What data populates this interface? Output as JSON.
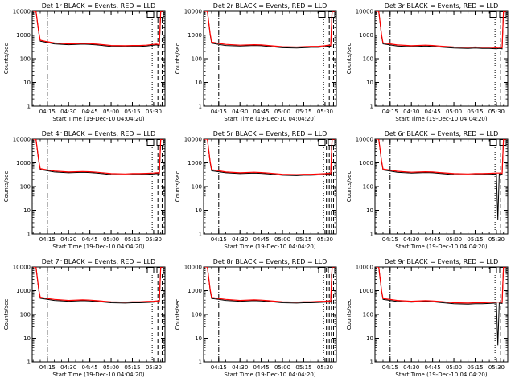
{
  "figure": {
    "background": "#ffffff",
    "axis_color": "#000000",
    "events_color": "#000000",
    "lld_color": "#ff0000"
  },
  "chart_data": [
    {
      "type": "line",
      "title": "Det 1r BLACK = Events, RED = LLD",
      "xlabel": "Start Time (19-Dec-10 04:04:20)",
      "ylabel": "Counts/sec",
      "yscale": "log",
      "ylim": [
        1,
        10000
      ],
      "xlim": [
        "04:04:20",
        "05:38:00"
      ],
      "xticks": [
        "04:15",
        "04:30",
        "04:45",
        "05:00",
        "05:15",
        "05:30"
      ],
      "yticks": [
        "1",
        "10",
        "100",
        "1000",
        "10000"
      ],
      "legend_boxes": 2,
      "x": [
        "04:05",
        "04:07",
        "04:09",
        "04:10",
        "04:15",
        "04:20",
        "04:30",
        "04:40",
        "04:45",
        "04:50",
        "05:00",
        "05:10",
        "05:15",
        "05:20",
        "05:25",
        "05:30",
        "05:32",
        "05:34",
        "05:35",
        "05:36",
        "05:37"
      ],
      "series": [
        {
          "name": "BLACK = Events",
          "values": [
            10000,
            10000,
            1200,
            550,
            480,
            420,
            390,
            410,
            400,
            380,
            330,
            320,
            330,
            330,
            340,
            370,
            380,
            360,
            10000,
            10000,
            10000
          ]
        },
        {
          "name": "RED = LLD",
          "values": [
            10000,
            10000,
            1300,
            600,
            520,
            460,
            420,
            440,
            430,
            410,
            360,
            350,
            360,
            360,
            370,
            400,
            410,
            390,
            10000,
            10000,
            10000
          ]
        }
      ],
      "dashdot_lines": [
        "04:15"
      ],
      "dotted_lines": [
        "05:29"
      ],
      "dashed_lines": [
        "05:33",
        "05:36"
      ]
    },
    {
      "type": "line",
      "title": "Det 2r BLACK = Events, RED = LLD",
      "xlabel": "Start Time (19-Dec-10 04:04:20)",
      "ylabel": "Counts/sec",
      "yscale": "log",
      "ylim": [
        1,
        10000
      ],
      "xlim": [
        "04:04:20",
        "05:38:00"
      ],
      "xticks": [
        "04:15",
        "04:30",
        "04:45",
        "05:00",
        "05:15",
        "05:30"
      ],
      "yticks": [
        "1",
        "10",
        "100",
        "1000",
        "10000"
      ],
      "legend_boxes": 2,
      "x": [
        "04:05",
        "04:07",
        "04:09",
        "04:10",
        "04:15",
        "04:20",
        "04:30",
        "04:40",
        "04:45",
        "04:50",
        "05:00",
        "05:10",
        "05:15",
        "05:20",
        "05:25",
        "05:30",
        "05:32",
        "05:34",
        "05:35",
        "05:36",
        "05:37"
      ],
      "series": [
        {
          "name": "BLACK = Events",
          "values": [
            10000,
            10000,
            1000,
            450,
            400,
            360,
            340,
            360,
            350,
            330,
            290,
            280,
            290,
            300,
            300,
            320,
            340,
            330,
            10000,
            10000,
            10000
          ]
        },
        {
          "name": "RED = LLD",
          "values": [
            10000,
            10000,
            1100,
            500,
            440,
            400,
            370,
            390,
            380,
            360,
            320,
            310,
            320,
            330,
            330,
            350,
            370,
            360,
            10000,
            10000,
            10000
          ]
        }
      ],
      "dashdot_lines": [
        "04:15"
      ],
      "dotted_lines": [
        "05:29"
      ],
      "dashed_lines": [
        "05:33",
        "05:36"
      ]
    },
    {
      "type": "line",
      "title": "Det 3r BLACK = Events, RED = LLD",
      "xlabel": "Start Time (19-Dec-10 04:04:20)",
      "ylabel": "Counts/sec",
      "yscale": "log",
      "ylim": [
        1,
        10000
      ],
      "xlim": [
        "04:04:20",
        "05:38:00"
      ],
      "xticks": [
        "04:15",
        "04:30",
        "04:45",
        "05:00",
        "05:15",
        "05:30"
      ],
      "yticks": [
        "1",
        "10",
        "100",
        "1000",
        "10000"
      ],
      "legend_boxes": 2,
      "x": [
        "04:05",
        "04:07",
        "04:09",
        "04:10",
        "04:15",
        "04:20",
        "04:30",
        "04:40",
        "04:45",
        "04:50",
        "05:00",
        "05:10",
        "05:15",
        "05:20",
        "05:25",
        "05:30",
        "05:32",
        "05:34",
        "05:35",
        "05:36",
        "05:37"
      ],
      "series": [
        {
          "name": "BLACK = Events",
          "values": [
            10000,
            10000,
            900,
            420,
            380,
            340,
            320,
            340,
            330,
            310,
            280,
            270,
            280,
            270,
            270,
            260,
            270,
            260,
            10000,
            10000,
            10000
          ]
        },
        {
          "name": "RED = LLD",
          "values": [
            10000,
            10000,
            1000,
            460,
            420,
            380,
            350,
            370,
            360,
            340,
            310,
            300,
            310,
            300,
            300,
            290,
            300,
            290,
            10000,
            10000,
            10000
          ]
        }
      ],
      "dashdot_lines": [
        "04:15"
      ],
      "dotted_lines": [
        "05:29"
      ],
      "dashed_lines": [
        "05:33",
        "05:36"
      ]
    },
    {
      "type": "line",
      "title": "Det 4r BLACK = Events, RED = LLD",
      "xlabel": "Start Time (19-Dec-10 04:04:20)",
      "ylabel": "Counts/sec",
      "yscale": "log",
      "ylim": [
        1,
        10000
      ],
      "xlim": [
        "04:04:20",
        "05:38:00"
      ],
      "xticks": [
        "04:15",
        "04:30",
        "04:45",
        "05:00",
        "05:15",
        "05:30"
      ],
      "yticks": [
        "1",
        "10",
        "100",
        "1000",
        "10000"
      ],
      "legend_boxes": 2,
      "x": [
        "04:05",
        "04:07",
        "04:09",
        "04:10",
        "04:15",
        "04:20",
        "04:30",
        "04:40",
        "04:45",
        "04:50",
        "05:00",
        "05:10",
        "05:15",
        "05:20",
        "05:25",
        "05:30",
        "05:32",
        "05:34",
        "05:35",
        "05:36",
        "05:37"
      ],
      "series": [
        {
          "name": "BLACK = Events",
          "values": [
            10000,
            10000,
            1100,
            520,
            460,
            410,
            380,
            400,
            390,
            370,
            320,
            310,
            320,
            320,
            330,
            340,
            350,
            340,
            10000,
            10000,
            10000
          ]
        },
        {
          "name": "RED = LLD",
          "values": [
            10000,
            10000,
            1200,
            570,
            500,
            450,
            410,
            430,
            420,
            400,
            350,
            340,
            350,
            350,
            360,
            370,
            380,
            370,
            10000,
            10000,
            10000
          ]
        }
      ],
      "dashdot_lines": [
        "04:15"
      ],
      "dotted_lines": [
        "05:29"
      ],
      "dashed_lines": [
        "05:33",
        "05:36"
      ]
    },
    {
      "type": "line",
      "title": "Det 5r BLACK = Events, RED = LLD",
      "xlabel": "Start Time (19-Dec-10 04:04:20)",
      "ylabel": "Counts/sec",
      "yscale": "log",
      "ylim": [
        1,
        10000
      ],
      "xlim": [
        "04:04:20",
        "05:38:00"
      ],
      "xticks": [
        "04:15",
        "04:30",
        "04:45",
        "05:00",
        "05:15",
        "05:30"
      ],
      "yticks": [
        "1",
        "10",
        "100",
        "1000",
        "10000"
      ],
      "legend_boxes": 2,
      "x": [
        "04:05",
        "04:07",
        "04:09",
        "04:10",
        "04:15",
        "04:20",
        "04:30",
        "04:40",
        "04:45",
        "04:50",
        "05:00",
        "05:10",
        "05:15",
        "05:20",
        "05:25",
        "05:30",
        "05:32",
        "05:34",
        "05:35",
        "05:36",
        "05:37"
      ],
      "series": [
        {
          "name": "BLACK = Events",
          "values": [
            10000,
            10000,
            1000,
            460,
            420,
            380,
            350,
            370,
            360,
            340,
            300,
            290,
            300,
            300,
            310,
            320,
            330,
            320,
            10000,
            10000,
            10000
          ]
        },
        {
          "name": "RED = LLD",
          "values": [
            10000,
            10000,
            1100,
            510,
            460,
            410,
            380,
            400,
            390,
            370,
            330,
            320,
            330,
            330,
            340,
            350,
            360,
            350,
            10000,
            10000,
            10000
          ]
        }
      ],
      "dashdot_lines": [
        "04:15"
      ],
      "dotted_lines": [
        "05:29"
      ],
      "dashed_lines": [
        "05:31",
        "05:33",
        "05:34.5",
        "05:36"
      ]
    },
    {
      "type": "line",
      "title": "Det 6r BLACK = Events, RED = LLD",
      "xlabel": "Start Time (19-Dec-10 04:04:20)",
      "ylabel": "Counts/sec",
      "yscale": "log",
      "ylim": [
        1,
        10000
      ],
      "xlim": [
        "04:04:20",
        "05:38:00"
      ],
      "xticks": [
        "04:15",
        "04:30",
        "04:45",
        "05:00",
        "05:15",
        "05:30"
      ],
      "yticks": [
        "1",
        "10",
        "100",
        "1000",
        "10000"
      ],
      "legend_boxes": 2,
      "x": [
        "04:05",
        "04:07",
        "04:09",
        "04:10",
        "04:15",
        "04:20",
        "04:30",
        "04:40",
        "04:45",
        "04:50",
        "05:00",
        "05:10",
        "05:15",
        "05:20",
        "05:25",
        "05:30",
        "05:31",
        "05:32",
        "05:34",
        "05:35",
        "05:36",
        "05:37"
      ],
      "series": [
        {
          "name": "BLACK = Events",
          "values": [
            10000,
            10000,
            1100,
            500,
            450,
            400,
            370,
            390,
            380,
            360,
            320,
            310,
            320,
            320,
            330,
            340,
            4,
            340,
            330,
            10000,
            10000,
            10000
          ]
        },
        {
          "name": "RED = LLD",
          "values": [
            10000,
            10000,
            1200,
            550,
            490,
            440,
            400,
            420,
            410,
            390,
            350,
            340,
            350,
            350,
            360,
            370,
            370,
            370,
            360,
            10000,
            10000,
            10000
          ]
        }
      ],
      "dashdot_lines": [
        "04:15"
      ],
      "dotted_lines": [
        "05:29"
      ],
      "dashed_lines": [
        "05:33",
        "05:36"
      ]
    },
    {
      "type": "line",
      "title": "Det 7r BLACK = Events, RED = LLD",
      "xlabel": "Start Time (19-Dec-10 04:04:20)",
      "ylabel": "Counts/sec",
      "yscale": "log",
      "ylim": [
        1,
        10000
      ],
      "xlim": [
        "04:04:20",
        "05:38:00"
      ],
      "xticks": [
        "04:15",
        "04:30",
        "04:45",
        "05:00",
        "05:15",
        "05:30"
      ],
      "yticks": [
        "1",
        "10",
        "100",
        "1000",
        "10000"
      ],
      "legend_boxes": 2,
      "x": [
        "04:05",
        "04:07",
        "04:09",
        "04:10",
        "04:15",
        "04:20",
        "04:30",
        "04:40",
        "04:45",
        "04:50",
        "05:00",
        "05:10",
        "05:15",
        "05:20",
        "05:25",
        "05:30",
        "05:32",
        "05:34",
        "05:35",
        "05:36",
        "05:37"
      ],
      "series": [
        {
          "name": "BLACK = Events",
          "values": [
            10000,
            10000,
            1000,
            480,
            430,
            390,
            360,
            380,
            370,
            350,
            310,
            300,
            310,
            310,
            320,
            330,
            340,
            330,
            10000,
            10000,
            10000
          ]
        },
        {
          "name": "RED = LLD",
          "values": [
            10000,
            10000,
            1100,
            530,
            470,
            430,
            390,
            410,
            400,
            380,
            340,
            330,
            340,
            340,
            350,
            360,
            370,
            360,
            10000,
            10000,
            10000
          ]
        }
      ],
      "dashdot_lines": [
        "04:15"
      ],
      "dotted_lines": [
        "05:29"
      ],
      "dashed_lines": [
        "05:33",
        "05:36"
      ]
    },
    {
      "type": "line",
      "title": "Det 8r BLACK = Events, RED = LLD",
      "xlabel": "Start Time (19-Dec-10 04:04:20)",
      "ylabel": "Counts/sec",
      "yscale": "log",
      "ylim": [
        1,
        10000
      ],
      "xlim": [
        "04:04:20",
        "05:38:00"
      ],
      "xticks": [
        "04:15",
        "04:30",
        "04:45",
        "05:00",
        "05:15",
        "05:30"
      ],
      "yticks": [
        "1",
        "10",
        "100",
        "1000",
        "10000"
      ],
      "legend_boxes": 2,
      "x": [
        "04:05",
        "04:07",
        "04:09",
        "04:10",
        "04:15",
        "04:20",
        "04:30",
        "04:40",
        "04:45",
        "04:50",
        "05:00",
        "05:10",
        "05:15",
        "05:20",
        "05:25",
        "05:30",
        "05:32",
        "05:34",
        "05:35",
        "05:36",
        "05:37"
      ],
      "series": [
        {
          "name": "BLACK = Events",
          "values": [
            10000,
            10000,
            1000,
            470,
            430,
            390,
            360,
            380,
            370,
            350,
            310,
            300,
            310,
            310,
            320,
            330,
            340,
            330,
            10000,
            10000,
            10000
          ]
        },
        {
          "name": "RED = LLD",
          "values": [
            10000,
            10000,
            1100,
            520,
            470,
            430,
            390,
            410,
            400,
            380,
            340,
            330,
            340,
            340,
            350,
            360,
            370,
            360,
            10000,
            10000,
            10000
          ]
        }
      ],
      "dashdot_lines": [
        "04:15"
      ],
      "dotted_lines": [
        "05:29"
      ],
      "dashed_lines": [
        "05:31",
        "05:33",
        "05:34.5",
        "05:36"
      ]
    },
    {
      "type": "line",
      "title": "Det 9r BLACK = Events, RED = LLD",
      "xlabel": "Start Time (19-Dec-10 04:04:20)",
      "ylabel": "Counts/sec",
      "yscale": "log",
      "ylim": [
        1,
        10000
      ],
      "xlim": [
        "04:04:20",
        "05:38:00"
      ],
      "xticks": [
        "04:15",
        "04:30",
        "04:45",
        "05:00",
        "05:15",
        "05:30"
      ],
      "yticks": [
        "1",
        "10",
        "100",
        "1000",
        "10000"
      ],
      "legend_boxes": 2,
      "x": [
        "04:05",
        "04:07",
        "04:09",
        "04:10",
        "04:15",
        "04:20",
        "04:30",
        "04:40",
        "04:45",
        "04:50",
        "05:00",
        "05:10",
        "05:15",
        "05:20",
        "05:25",
        "05:30",
        "05:31",
        "05:32",
        "05:34",
        "05:35",
        "05:36",
        "05:37"
      ],
      "series": [
        {
          "name": "BLACK = Events",
          "values": [
            10000,
            10000,
            900,
            430,
            390,
            350,
            330,
            350,
            340,
            320,
            280,
            270,
            280,
            280,
            290,
            300,
            5,
            300,
            290,
            10000,
            10000,
            10000
          ]
        },
        {
          "name": "RED = LLD",
          "values": [
            10000,
            10000,
            1000,
            470,
            430,
            390,
            360,
            380,
            370,
            350,
            310,
            300,
            310,
            310,
            320,
            330,
            330,
            330,
            320,
            10000,
            10000,
            10000
          ]
        }
      ],
      "dashdot_lines": [
        "04:15"
      ],
      "dotted_lines": [
        "05:29"
      ],
      "dashed_lines": [
        "05:33",
        "05:36"
      ]
    }
  ]
}
